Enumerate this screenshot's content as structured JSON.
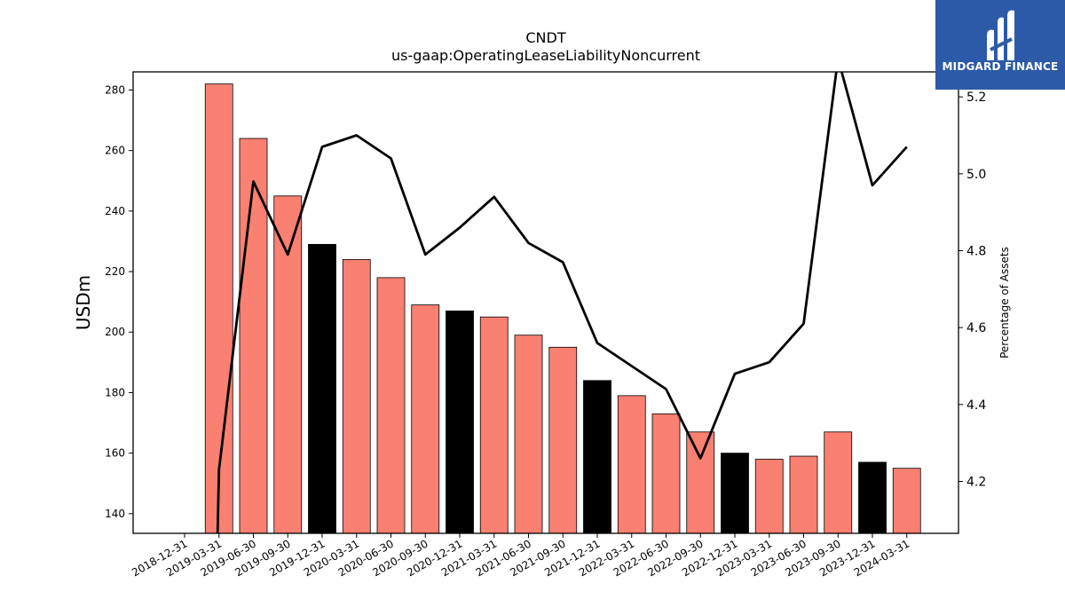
{
  "chart_data": {
    "type": "bar",
    "title": "CNDT",
    "subtitle": "us-gaap:OperatingLeaseLiabilityNoncurrent",
    "ylabel": "USDm",
    "ylabel_right": "Percentage of Assets",
    "categories": [
      "2018-12-31",
      "2019-03-31",
      "2019-06-30",
      "2019-09-30",
      "2019-12-31",
      "2020-03-31",
      "2020-06-30",
      "2020-09-30",
      "2020-12-31",
      "2021-03-31",
      "2021-06-30",
      "2021-09-30",
      "2021-12-31",
      "2022-03-31",
      "2022-06-30",
      "2022-09-30",
      "2022-12-31",
      "2023-03-31",
      "2023-06-30",
      "2023-09-30",
      "2023-12-31",
      "2024-03-31"
    ],
    "series": [
      {
        "values": [
          null,
          282,
          264,
          245,
          229,
          224,
          218,
          209,
          207,
          205,
          199,
          195,
          184,
          179,
          173,
          167,
          160,
          158,
          159,
          167,
          157,
          155
        ],
        "colors": [
          "#fa8072",
          "#fa8072",
          "#fa8072",
          "#fa8072",
          "#000000",
          "#fa8072",
          "#fa8072",
          "#fa8072",
          "#000000",
          "#fa8072",
          "#fa8072",
          "#fa8072",
          "#000000",
          "#fa8072",
          "#fa8072",
          "#fa8072",
          "#000000",
          "#fa8072",
          "#fa8072",
          "#fa8072",
          "#000000",
          "#fa8072"
        ]
      },
      {
        "type": "line",
        "axis": "right",
        "values": [
          null,
          4.23,
          4.98,
          4.79,
          5.07,
          5.1,
          5.04,
          4.79,
          4.86,
          4.94,
          4.82,
          4.77,
          4.56,
          4.5,
          4.44,
          4.26,
          4.48,
          4.51,
          4.61,
          5.3,
          4.97,
          5.07
        ]
      }
    ],
    "ylim": [
      133.5,
      286
    ],
    "y_ticks": [
      140,
      160,
      180,
      200,
      220,
      240,
      260,
      280
    ],
    "ylim_right": [
      4.065,
      5.265
    ],
    "y_ticks_right": [
      4.2,
      4.4,
      4.6,
      4.8,
      5.0,
      5.2
    ],
    "y_tick_labels_right": [
      "4.2",
      "4.4",
      "4.6",
      "4.8",
      "5.0",
      "5.2"
    ],
    "grid": false
  },
  "logo": {
    "text": "MIDGARD FINANCE"
  },
  "colors": {
    "bar": "#fa8072",
    "bar_year_end": "#000000",
    "line": "#000000",
    "logo_bg": "#2c5aa8"
  }
}
